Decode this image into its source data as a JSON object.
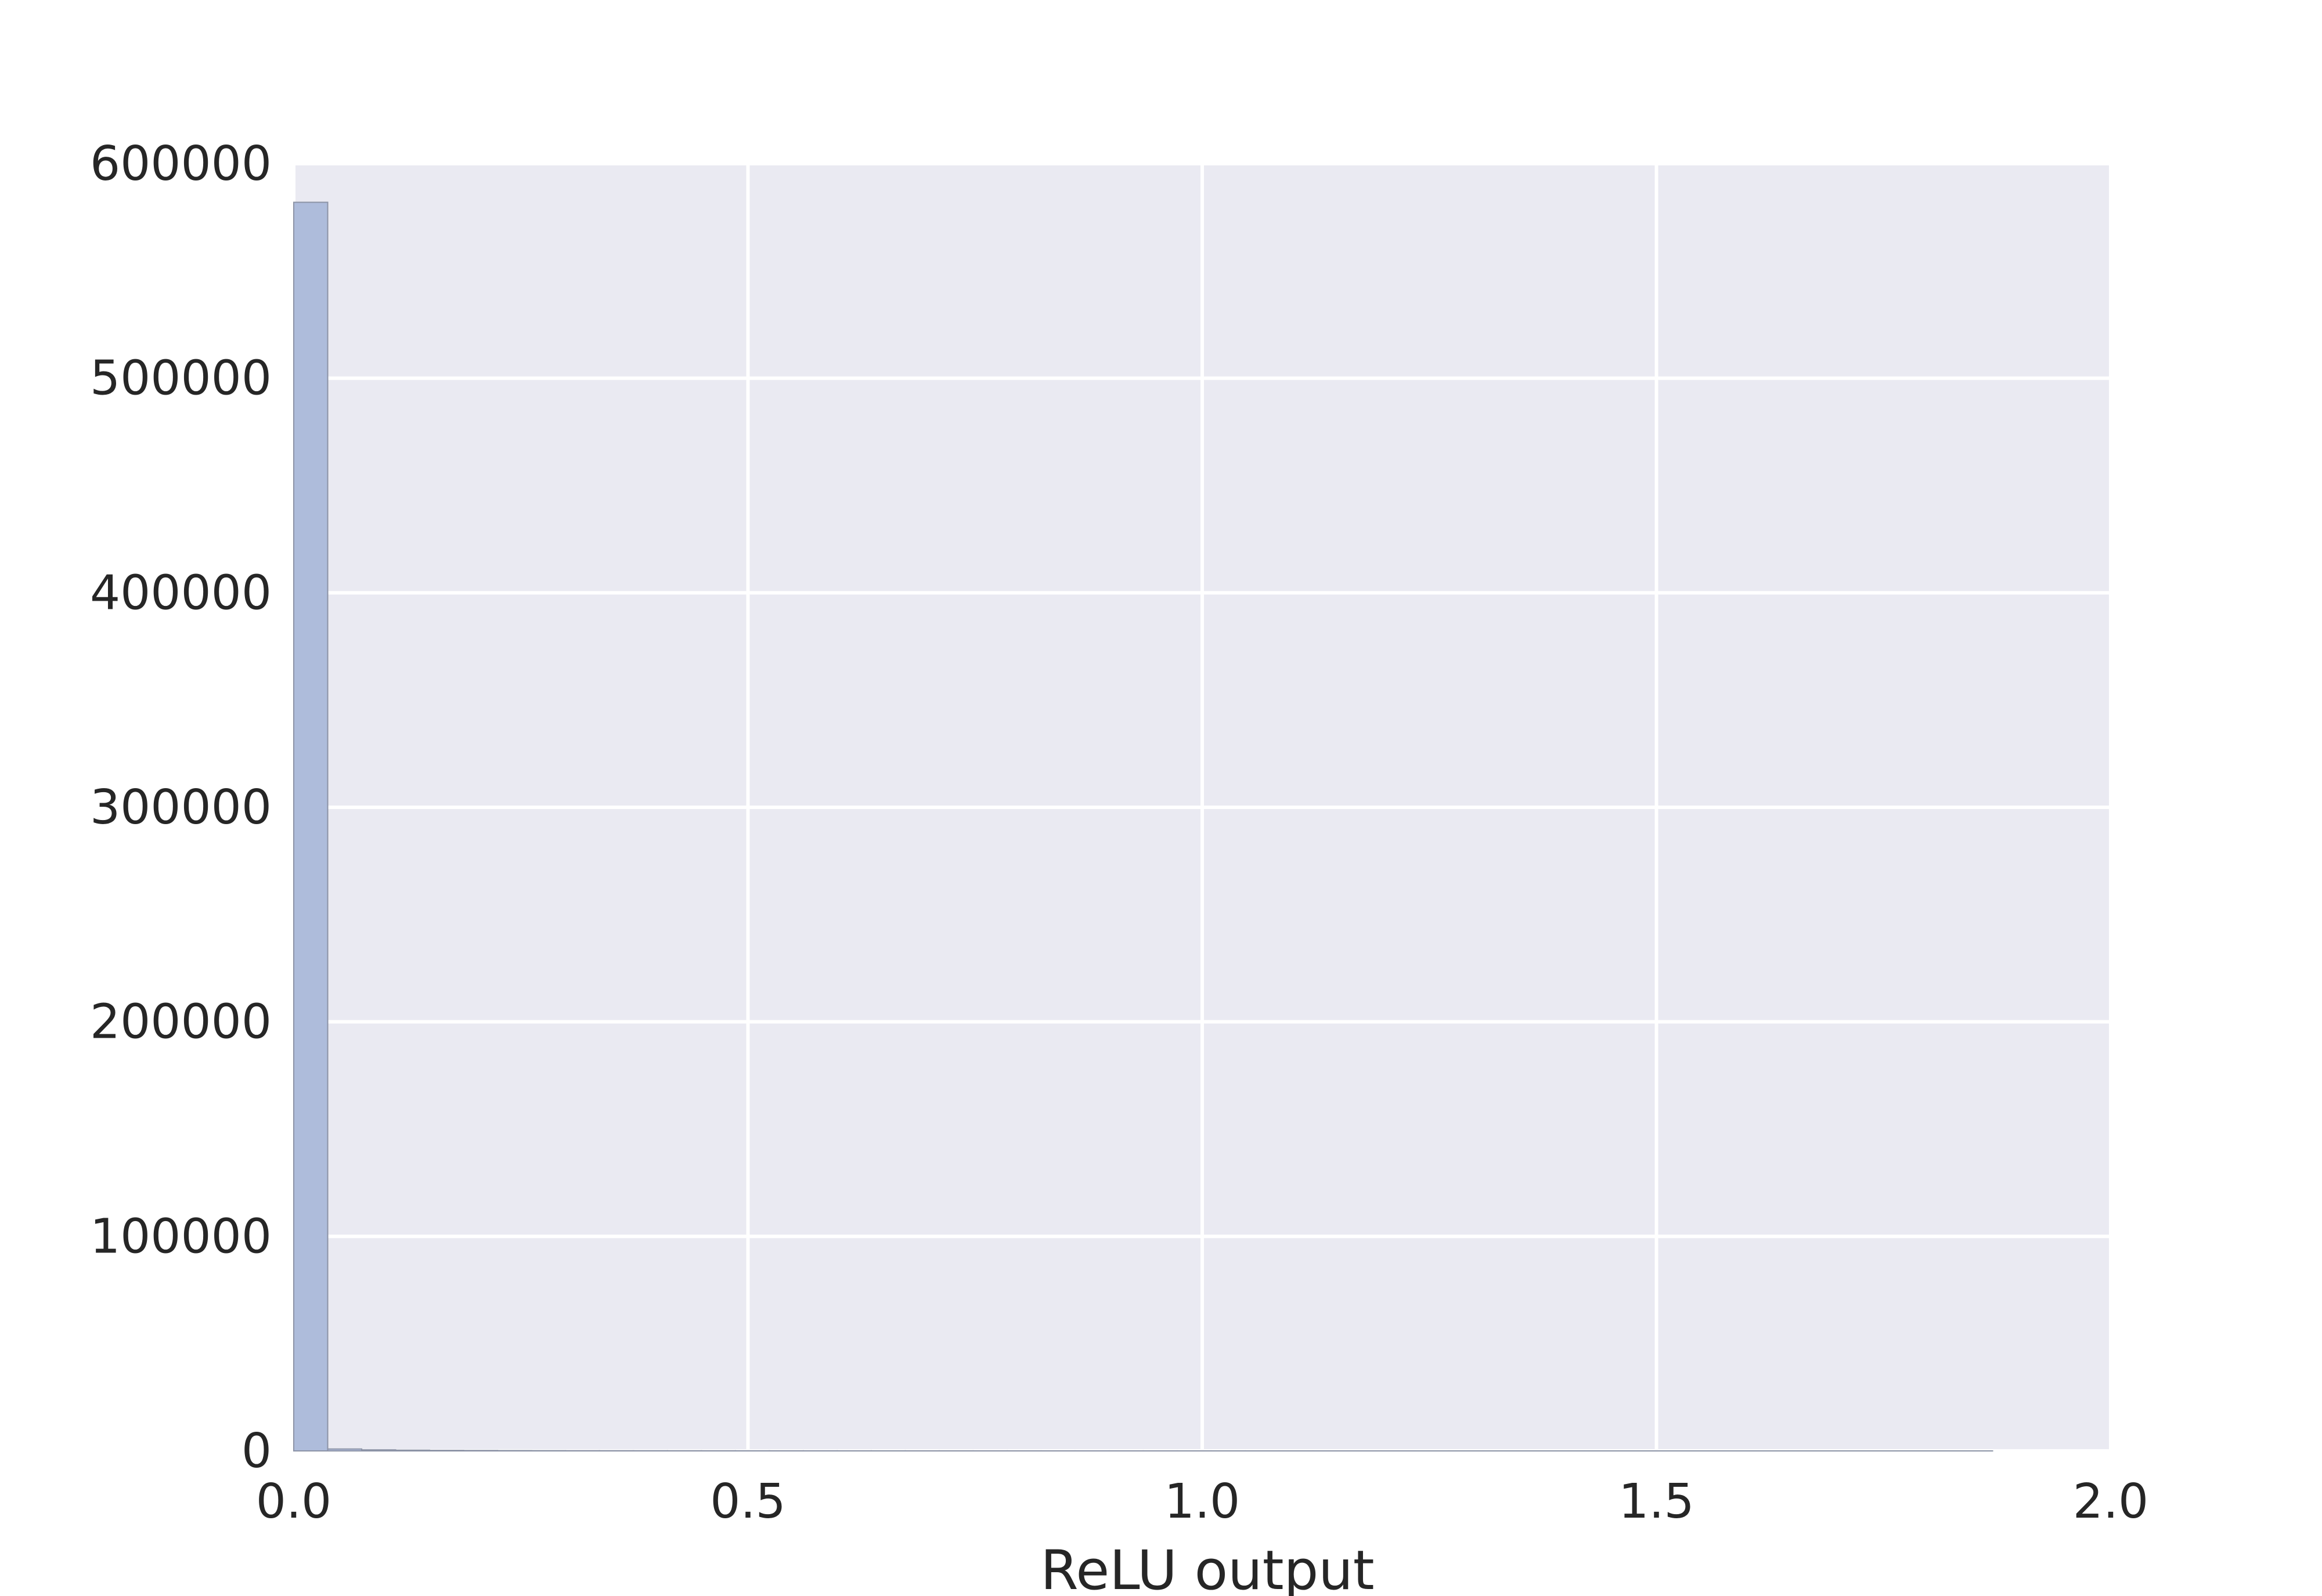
{
  "chart_data": {
    "type": "bar",
    "title": "",
    "xlabel": "ReLU output",
    "ylabel": "",
    "xlim": [
      0,
      2
    ],
    "ylim": [
      0,
      600000
    ],
    "x_ticks": [
      "0.0",
      "0.5",
      "1.0",
      "1.5",
      "2.0"
    ],
    "y_ticks": [
      "0",
      "100000",
      "200000",
      "300000",
      "400000",
      "500000",
      "600000"
    ],
    "bin_width": 0.0374,
    "bin_starts": [
      0,
      0.0374,
      0.0748,
      0.1122,
      0.1496,
      0.187,
      0.2244,
      0.2618,
      0.2992,
      0.3366,
      0.374,
      0.4114,
      0.4488,
      0.4862,
      0.5236,
      0.561,
      0.5984,
      0.6358,
      0.6732,
      0.7106,
      0.748,
      0.7854,
      0.8228,
      0.8602,
      0.8976,
      0.935,
      0.9724,
      1.0098,
      1.0472,
      1.0846,
      1.122,
      1.1594,
      1.1968,
      1.2342,
      1.2716,
      1.309,
      1.3464,
      1.3838,
      1.4212,
      1.4586,
      1.496,
      1.5334,
      1.5708,
      1.6082,
      1.6456,
      1.683,
      1.7204,
      1.7578,
      1.7952,
      1.8326
    ],
    "values": [
      582000,
      900,
      500,
      350,
      250,
      200,
      150,
      120,
      100,
      90,
      80,
      70,
      60,
      50,
      45,
      40,
      35,
      30,
      28,
      25,
      22,
      20,
      18,
      16,
      14,
      12,
      10,
      9,
      8,
      7,
      6,
      5,
      5,
      4,
      4,
      3,
      3,
      2,
      2,
      2,
      2,
      1,
      1,
      1,
      1,
      1,
      1,
      1,
      1,
      1
    ],
    "grid": true,
    "colors": {
      "bar_fill": "#aebcdb",
      "bar_edge": "#8c93a6",
      "plot_background": "#eaeaf2",
      "grid": "#ffffff",
      "text": "#262626"
    }
  }
}
